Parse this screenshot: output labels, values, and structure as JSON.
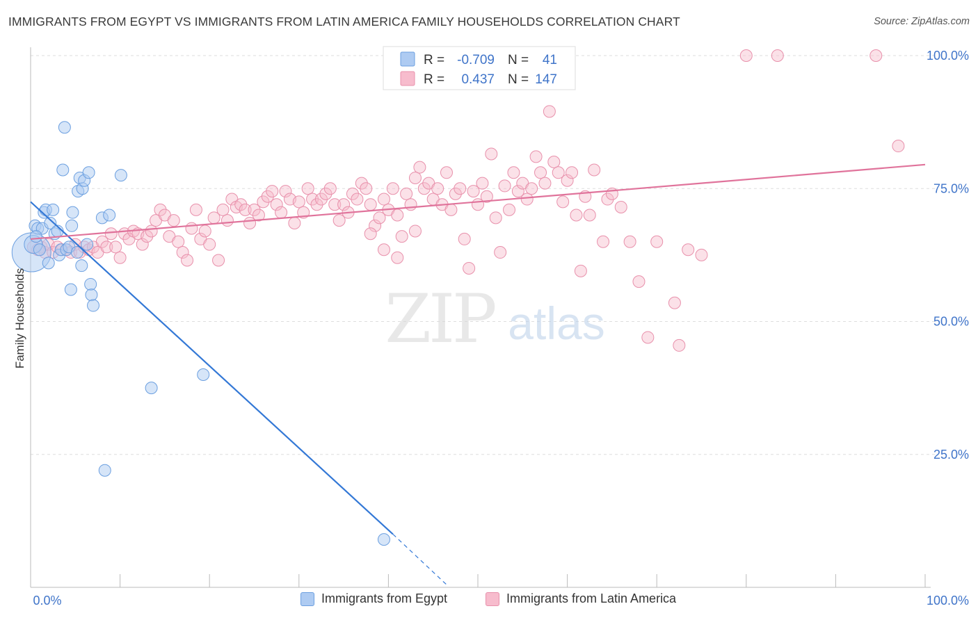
{
  "header": {
    "title": "IMMIGRANTS FROM EGYPT VS IMMIGRANTS FROM LATIN AMERICA FAMILY HOUSEHOLDS CORRELATION CHART",
    "source": "Source: ZipAtlas.com"
  },
  "watermark": {
    "zip": "ZIP",
    "atlas": "atlas"
  },
  "colors": {
    "egypt_fill": "#aecbf2",
    "egypt_stroke": "#6b9fe0",
    "egypt_line": "#3378d6",
    "latin_fill": "#f7bccd",
    "latin_stroke": "#e890ab",
    "latin_line": "#e0739b",
    "value_text": "#3f74c9",
    "grid": "#dddddd",
    "axis": "#bbbbbb"
  },
  "stats_legend": {
    "rows": [
      {
        "r_label": "R =",
        "r_value": "-0.709",
        "n_label": "N =",
        "n_value": "41"
      },
      {
        "r_label": "R =",
        "r_value": "0.437",
        "n_label": "N =",
        "n_value": "147"
      }
    ]
  },
  "chart_data": {
    "type": "scatter",
    "title": "IMMIGRANTS FROM EGYPT VS IMMIGRANTS FROM LATIN AMERICA FAMILY HOUSEHOLDS CORRELATION CHART",
    "xlabel": "",
    "ylabel": "Family Households",
    "xlim": [
      0,
      100
    ],
    "ylim": [
      0,
      100
    ],
    "x_tick_labels": [
      {
        "value": 0,
        "label": "0.0%"
      },
      {
        "value": 100,
        "label": "100.0%"
      }
    ],
    "y_tick_labels": [
      {
        "value": 25,
        "label": "25.0%"
      },
      {
        "value": 50,
        "label": "50.0%"
      },
      {
        "value": 75,
        "label": "75.0%"
      },
      {
        "value": 100,
        "label": "100.0%"
      }
    ],
    "grid": true,
    "legend_position": "bottom",
    "series": [
      {
        "name": "Immigrants from Egypt",
        "R": -0.709,
        "N": 41,
        "trend": {
          "x": [
            0,
            40.5
          ],
          "y": [
            72.5,
            10.0
          ],
          "dashed_x": [
            40.5,
            46.5
          ],
          "dashed_y": [
            10.0,
            0.5
          ]
        },
        "points": [
          [
            0.1,
            63
          ],
          [
            0.3,
            64.5
          ],
          [
            0.5,
            68
          ],
          [
            0.8,
            67.5
          ],
          [
            1.0,
            63.5
          ],
          [
            1.3,
            67.5
          ],
          [
            1.5,
            70.5
          ],
          [
            1.7,
            71
          ],
          [
            2.0,
            61
          ],
          [
            2.2,
            68.5
          ],
          [
            2.5,
            71
          ],
          [
            2.7,
            66.5
          ],
          [
            3.0,
            67
          ],
          [
            3.2,
            62.5
          ],
          [
            3.4,
            63.5
          ],
          [
            3.6,
            78.5
          ],
          [
            3.8,
            86.5
          ],
          [
            4.0,
            63.5
          ],
          [
            4.3,
            64
          ],
          [
            4.5,
            56
          ],
          [
            4.6,
            68
          ],
          [
            4.7,
            70.5
          ],
          [
            5.2,
            63
          ],
          [
            5.3,
            74.5
          ],
          [
            5.5,
            77
          ],
          [
            5.7,
            60.5
          ],
          [
            5.8,
            75
          ],
          [
            6.0,
            76.5
          ],
          [
            6.3,
            64.5
          ],
          [
            6.5,
            78
          ],
          [
            6.7,
            57
          ],
          [
            6.8,
            55
          ],
          [
            7.0,
            53
          ],
          [
            8.0,
            69.5
          ],
          [
            8.3,
            22
          ],
          [
            8.8,
            70
          ],
          [
            10.1,
            77.5
          ],
          [
            13.5,
            37.5
          ],
          [
            19.3,
            40
          ],
          [
            39.5,
            9
          ],
          [
            0.6,
            66
          ]
        ],
        "sizes": {
          "0": 28,
          "1": 13
        }
      },
      {
        "name": "Immigrants from Latin America",
        "R": 0.437,
        "N": 147,
        "trend": {
          "x": [
            0,
            100
          ],
          "y": [
            65.5,
            79.5
          ]
        },
        "points": [
          [
            0.3,
            64
          ],
          [
            0.8,
            63.5
          ],
          [
            1.2,
            64
          ],
          [
            1.6,
            63
          ],
          [
            2.0,
            64.5
          ],
          [
            2.5,
            63
          ],
          [
            3.0,
            64
          ],
          [
            3.5,
            63.5
          ],
          [
            4.0,
            63.5
          ],
          [
            4.5,
            63
          ],
          [
            5.0,
            64.5
          ],
          [
            5.5,
            63
          ],
          [
            6.0,
            64
          ],
          [
            6.5,
            63.5
          ],
          [
            7.0,
            64
          ],
          [
            7.5,
            63
          ],
          [
            8.0,
            65
          ],
          [
            8.5,
            64
          ],
          [
            9.0,
            66.5
          ],
          [
            9.5,
            64
          ],
          [
            10.0,
            62
          ],
          [
            10.5,
            66.5
          ],
          [
            11.0,
            65.5
          ],
          [
            11.5,
            67
          ],
          [
            12.0,
            66.5
          ],
          [
            12.5,
            64.5
          ],
          [
            13.0,
            66
          ],
          [
            13.5,
            67
          ],
          [
            14.0,
            69
          ],
          [
            14.5,
            71
          ],
          [
            15.0,
            70
          ],
          [
            15.5,
            66
          ],
          [
            16.0,
            69
          ],
          [
            16.5,
            65
          ],
          [
            17.0,
            63
          ],
          [
            17.5,
            61.5
          ],
          [
            18.0,
            67.5
          ],
          [
            18.5,
            71
          ],
          [
            19.0,
            65.5
          ],
          [
            19.5,
            67
          ],
          [
            20.0,
            64.5
          ],
          [
            20.5,
            69.5
          ],
          [
            21.0,
            61.5
          ],
          [
            21.5,
            71
          ],
          [
            22.0,
            69
          ],
          [
            22.5,
            73
          ],
          [
            23.0,
            71.5
          ],
          [
            23.5,
            72
          ],
          [
            24.0,
            71
          ],
          [
            24.5,
            68.5
          ],
          [
            25.0,
            71
          ],
          [
            25.5,
            70
          ],
          [
            26.0,
            72.5
          ],
          [
            26.5,
            73.5
          ],
          [
            27.0,
            74.5
          ],
          [
            27.5,
            72
          ],
          [
            28.0,
            70.5
          ],
          [
            28.5,
            74.5
          ],
          [
            29.0,
            73
          ],
          [
            29.5,
            68.5
          ],
          [
            30.0,
            72.5
          ],
          [
            30.5,
            70.5
          ],
          [
            31.0,
            75
          ],
          [
            31.5,
            73
          ],
          [
            32.0,
            72
          ],
          [
            32.5,
            73
          ],
          [
            33.0,
            74
          ],
          [
            33.5,
            75
          ],
          [
            34.0,
            72
          ],
          [
            34.5,
            69
          ],
          [
            35.0,
            72
          ],
          [
            35.5,
            70.5
          ],
          [
            36.0,
            74
          ],
          [
            36.5,
            73
          ],
          [
            37.0,
            76
          ],
          [
            37.5,
            75
          ],
          [
            38.0,
            72
          ],
          [
            38.5,
            68
          ],
          [
            39.0,
            69.5
          ],
          [
            39.5,
            73
          ],
          [
            40.0,
            71
          ],
          [
            40.5,
            75
          ],
          [
            41.0,
            70
          ],
          [
            41.5,
            66
          ],
          [
            42.0,
            74
          ],
          [
            42.5,
            72
          ],
          [
            43.0,
            77
          ],
          [
            43.5,
            79
          ],
          [
            44.0,
            75
          ],
          [
            44.5,
            76
          ],
          [
            45.0,
            73
          ],
          [
            45.5,
            75
          ],
          [
            46.0,
            72
          ],
          [
            46.5,
            78
          ],
          [
            47.0,
            71
          ],
          [
            47.5,
            74
          ],
          [
            48.0,
            75
          ],
          [
            48.5,
            65.5
          ],
          [
            49.0,
            60
          ],
          [
            49.5,
            74.5
          ],
          [
            50.0,
            72
          ],
          [
            50.5,
            76
          ],
          [
            51.0,
            73.5
          ],
          [
            51.5,
            81.5
          ],
          [
            52.0,
            69.5
          ],
          [
            52.5,
            63
          ],
          [
            53.0,
            75.5
          ],
          [
            53.5,
            71
          ],
          [
            54.0,
            78
          ],
          [
            54.5,
            74.5
          ],
          [
            55.0,
            76
          ],
          [
            55.5,
            73
          ],
          [
            56.0,
            75
          ],
          [
            56.5,
            81
          ],
          [
            57.0,
            78
          ],
          [
            57.5,
            76
          ],
          [
            58.0,
            89.5
          ],
          [
            58.5,
            80
          ],
          [
            59.0,
            78
          ],
          [
            59.5,
            72.5
          ],
          [
            60.0,
            76.5
          ],
          [
            60.5,
            78
          ],
          [
            61.0,
            70
          ],
          [
            61.5,
            59.5
          ],
          [
            62.0,
            73.5
          ],
          [
            62.5,
            70
          ],
          [
            63.0,
            78.5
          ],
          [
            64.0,
            65
          ],
          [
            64.5,
            73
          ],
          [
            65.0,
            74
          ],
          [
            66.0,
            71.5
          ],
          [
            67.0,
            65
          ],
          [
            68.0,
            57.5
          ],
          [
            69.0,
            47
          ],
          [
            70.0,
            65
          ],
          [
            72.0,
            53.5
          ],
          [
            72.5,
            45.5
          ],
          [
            73.5,
            63.5
          ],
          [
            75.0,
            62.5
          ],
          [
            80.0,
            100
          ],
          [
            83.5,
            100
          ],
          [
            94.5,
            100
          ],
          [
            97.0,
            83
          ],
          [
            38.0,
            66.5
          ],
          [
            39.5,
            63.5
          ],
          [
            41.0,
            62
          ],
          [
            43.0,
            67
          ]
        ]
      }
    ]
  },
  "bottom_legend": {
    "items": [
      {
        "label": "Immigrants from Egypt"
      },
      {
        "label": "Immigrants from Latin America"
      }
    ]
  }
}
